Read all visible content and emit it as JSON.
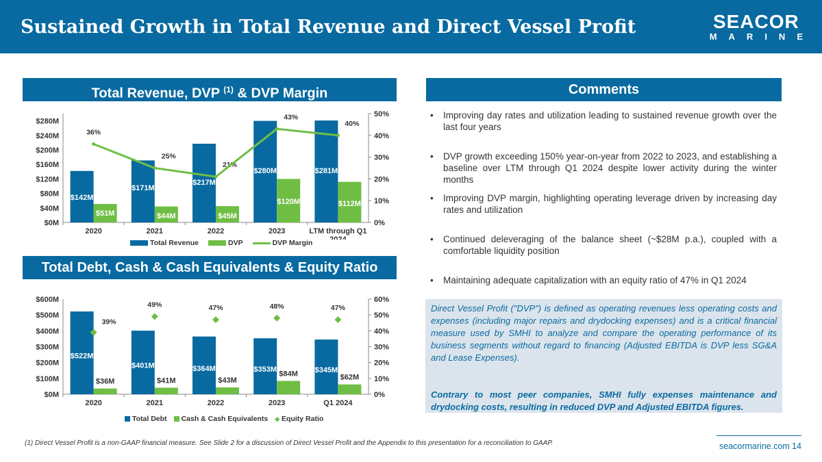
{
  "header": {
    "title": "Sustained Growth in Total Revenue and Direct Vessel Profit",
    "logo_line1": "SEACOR",
    "logo_line2": "MARINE"
  },
  "colors": {
    "brand_blue": "#086aa0",
    "green": "#6fbe44",
    "box_bg": "#dbe4ec"
  },
  "chart1_header": {
    "title": "Total Revenue, DVP",
    "sup": "(1)",
    "title_end": "& DVP Margin"
  },
  "comments_header": {
    "title": "Comments"
  },
  "chart2_header": {
    "title": "Total Debt, Cash & Cash Equivalents & Equity Ratio"
  },
  "chart_data": [
    {
      "type": "bar",
      "categories": [
        "2020",
        "2021",
        "2022",
        "2023",
        "LTM through Q1 2024"
      ],
      "series": [
        {
          "name": "Total Revenue",
          "kind": "bar",
          "axis": "left",
          "values": [
            142,
            171,
            217,
            280,
            281
          ],
          "labels": [
            "$142M",
            "$171M",
            "$217M",
            "$280M",
            "$281M"
          ],
          "color": "#086aa0"
        },
        {
          "name": "DVP",
          "kind": "bar",
          "axis": "left",
          "values": [
            51,
            44,
            45,
            120,
            112
          ],
          "labels": [
            "$51M",
            "$44M",
            "$45M",
            "$120M",
            "$112M"
          ],
          "color": "#6fbe44"
        },
        {
          "name": "DVP Margin",
          "kind": "line",
          "axis": "right",
          "values": [
            36,
            25,
            21,
            43,
            40
          ],
          "labels": [
            "36%",
            "25%",
            "21%",
            "43%",
            "40%"
          ],
          "color": "#6fbe44"
        }
      ],
      "left_ticks": [
        "$0M",
        "$40M",
        "$80M",
        "$120M",
        "$160M",
        "$200M",
        "$240M",
        "$280M"
      ],
      "right_ticks": [
        "0%",
        "10%",
        "20%",
        "30%",
        "40%",
        "50%"
      ],
      "ylim_left": [
        0,
        300
      ],
      "ylim_right": [
        0,
        50
      ],
      "legend": "bottom"
    },
    {
      "type": "bar",
      "categories": [
        "2020",
        "2021",
        "2022",
        "2023",
        "Q1 2024"
      ],
      "series": [
        {
          "name": "Total Debt",
          "kind": "bar",
          "axis": "left",
          "values": [
            522,
            401,
            364,
            353,
            345
          ],
          "labels": [
            "$522M",
            "$401M",
            "$364M",
            "$353M",
            "$345M"
          ],
          "color": "#086aa0"
        },
        {
          "name": "Cash & Cash Equivalents",
          "kind": "bar",
          "axis": "left",
          "values": [
            36,
            41,
            43,
            84,
            62
          ],
          "labels": [
            "$36M",
            "$41M",
            "$43M",
            "$84M",
            "$62M"
          ],
          "color": "#6fbe44"
        },
        {
          "name": "Equity Ratio",
          "kind": "marker",
          "axis": "right",
          "values": [
            39,
            49,
            47,
            48,
            47
          ],
          "labels": [
            "39%",
            "49%",
            "47%",
            "48%",
            "47%"
          ],
          "color": "#6fbe44"
        }
      ],
      "left_ticks": [
        "$0M",
        "$100M",
        "$200M",
        "$300M",
        "$400M",
        "$500M",
        "$600M"
      ],
      "right_ticks": [
        "0%",
        "10%",
        "20%",
        "30%",
        "40%",
        "50%",
        "60%"
      ],
      "ylim_left": [
        0,
        600
      ],
      "ylim_right": [
        0,
        60
      ],
      "legend": "bottom"
    }
  ],
  "comments": [
    "Improving day rates and utilization leading to sustained revenue growth over the last four years",
    "DVP growth exceeding 150% year-on-year from 2022 to 2023, and establishing a baseline over LTM through Q1 2024 despite lower activity during the winter months",
    "Improving DVP margin, highlighting operating leverage driven by increasing day rates and utilization",
    "Continued deleveraging of the balance sheet (~$28M p.a.), coupled with a comfortable liquidity position",
    "Maintaining adequate capitalization with an equity ratio of 47% in Q1 2024"
  ],
  "definition": {
    "text": "Direct Vessel Profit (\"DVP\") is defined as operating revenues less operating costs and expenses (including major repairs and drydocking expenses) and is a critical financial measure used by SMHI to analyze and compare the operating performance of its business segments without regard to financing (Adjusted EBITDA is DVP less SG&A and Lease Expenses).",
    "bold_text": "Contrary to most peer companies, SMHI fully expenses maintenance and drydocking costs, resulting in reduced DVP and Adjusted EBITDA figures."
  },
  "footer": {
    "footnote": "(1)    Direct Vessel Profit is a non-GAAP financial measure. See Slide 2 for a discussion of Direct Vessel Profit and the Appendix to this presentation for a reconciliation to GAAP.",
    "url": "seacormarine.com",
    "page": "14"
  }
}
